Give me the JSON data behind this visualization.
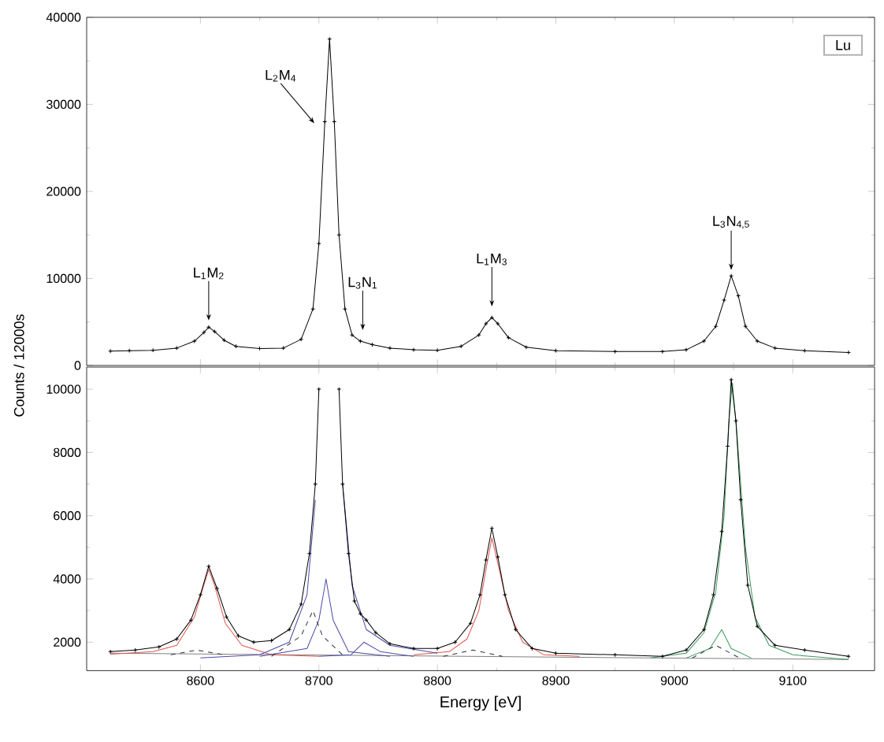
{
  "chart_data": [
    {
      "type": "line",
      "ylabel": "Counts / 12000s",
      "xlim": [
        8504,
        9169
      ],
      "ylim": [
        0,
        40000
      ],
      "xticks": [
        8600,
        8700,
        8800,
        8900,
        9000,
        9100
      ],
      "yticks": [
        0,
        10000,
        20000,
        30000,
        40000
      ],
      "tick_labels": "y",
      "series": [
        {
          "color": "#000000",
          "marker": "cross",
          "x": [
            8524,
            8540,
            8560,
            8580,
            8595,
            8603,
            8607,
            8612,
            8620,
            8630,
            8650,
            8670,
            8685,
            8695,
            8700,
            8705,
            8709,
            8713,
            8717,
            8722,
            8728,
            8735,
            8745,
            8760,
            8780,
            8800,
            8820,
            8835,
            8841,
            8846,
            8851,
            8860,
            8875,
            8900,
            8950,
            8990,
            9010,
            9025,
            9035,
            9042,
            9048,
            9054,
            9060,
            9070,
            9085,
            9110,
            9147
          ],
          "values": [
            1650,
            1700,
            1750,
            2000,
            2800,
            3800,
            4400,
            3900,
            2900,
            2200,
            1950,
            2000,
            3000,
            6500,
            14000,
            28000,
            37500,
            28000,
            15000,
            6500,
            3500,
            2800,
            2400,
            2000,
            1800,
            1750,
            2200,
            3500,
            4800,
            5500,
            4800,
            3200,
            2100,
            1700,
            1600,
            1600,
            1800,
            2800,
            4500,
            7500,
            10300,
            8000,
            4500,
            2800,
            2000,
            1700,
            1500
          ]
        }
      ],
      "annotations": [
        {
          "text": "L$_{1}$M$_{2}$",
          "x": 8607,
          "y": 5000
        },
        {
          "text": "L$_{2}$M$_{4}$",
          "x": 8697,
          "y": 27700
        },
        {
          "text": "L$_{3}$N$_{1}$",
          "x": 8737,
          "y": 3900
        },
        {
          "text": "L$_{1}$M$_{3}$",
          "x": 8846,
          "y": 6600
        },
        {
          "text": "L$_{3}$N$_{4,5}$",
          "x": 9048,
          "y": 10800
        },
        "Lu"
      ]
    },
    {
      "type": "line",
      "xlabel": "Energy [eV]",
      "xlim": [
        8504,
        9169
      ],
      "ylim": [
        1100,
        10700
      ],
      "xticks": [
        8600,
        8700,
        8800,
        8900,
        9000,
        9100
      ],
      "yticks": [
        2000,
        4000,
        6000,
        8000,
        10000
      ],
      "series": [
        {
          "color": "#808080",
          "x": [
            8524,
            9147
          ],
          "values": [
            1650,
            1450
          ]
        },
        {
          "color": "#e0544a",
          "x": [
            8524,
            8560,
            8580,
            8595,
            8602,
            8607,
            8612,
            8621,
            8635,
            8660,
            8700
          ],
          "values": [
            1620,
            1700,
            1900,
            2800,
            3700,
            4300,
            3800,
            2600,
            1900,
            1600,
            1550
          ]
        },
        {
          "color": "#e0544a",
          "x": [
            8780,
            8810,
            8825,
            8835,
            8841,
            8846,
            8851,
            8860,
            8872,
            8890,
            8920
          ],
          "values": [
            1600,
            1700,
            2100,
            3000,
            4300,
            5300,
            4500,
            3000,
            2000,
            1600,
            1550
          ]
        },
        {
          "color": "#4a4aa8",
          "x": [
            8600,
            8650,
            8675,
            8690,
            8697,
            8701,
            8709,
            8716,
            8720,
            8728,
            8740,
            8760,
            8800
          ],
          "values": [
            1500,
            1600,
            2000,
            3500,
            6500,
            null,
            null,
            null,
            7000,
            3800,
            2400,
            1900,
            1650
          ]
        },
        {
          "color": "#4a4aa8",
          "x": [
            8650,
            8690,
            8700,
            8706,
            8712,
            8725,
            8760
          ],
          "values": [
            1550,
            1800,
            2700,
            4000,
            2700,
            1700,
            1550
          ]
        },
        {
          "color": "#4a4aa8",
          "x": [
            8700,
            8727,
            8738,
            8752,
            8780
          ],
          "values": [
            1550,
            1600,
            2000,
            1700,
            1550
          ]
        },
        {
          "color": "#3a9a5a",
          "x": [
            8980,
            9010,
            9025,
            9035,
            9042,
            9046,
            9049,
            9053,
            9060,
            9068,
            9080,
            9100,
            9147
          ],
          "values": [
            1500,
            1650,
            2300,
            3600,
            6000,
            9000,
            10200,
            8500,
            5000,
            2800,
            1900,
            1600,
            1450
          ]
        },
        {
          "color": "#3a9a5a",
          "x": [
            9010,
            9030,
            9040,
            9048,
            9065
          ],
          "values": [
            1500,
            1800,
            2400,
            1800,
            1500
          ]
        },
        {
          "color": "#333333",
          "line_style": "dashed",
          "x": [
            8575,
            8597,
            8620,
            null,
            8660,
            8685,
            8695,
            8703,
            8720,
            null,
            8805,
            8830,
            8855,
            null,
            9015,
            9035,
            9055
          ],
          "values": [
            1600,
            1750,
            1600,
            null,
            1550,
            2200,
            3000,
            2200,
            1600,
            null,
            1550,
            1750,
            1550,
            null,
            1500,
            1900,
            1500
          ]
        },
        {
          "color": "#000000",
          "marker": "cross",
          "x": [
            8524,
            8545,
            8565,
            8580,
            8592,
            8600,
            8607,
            8614,
            8622,
            8632,
            8645,
            8660,
            8675,
            8685,
            8692,
            8697,
            8700,
            8709,
            8717,
            8720,
            8725,
            8730,
            8735,
            8740,
            8748,
            8760,
            8780,
            8800,
            8815,
            8828,
            8836,
            8841,
            8846,
            8851,
            8857,
            8866,
            8880,
            8900,
            8950,
            8990,
            9010,
            9025,
            9033,
            9040,
            9045,
            9048,
            9052,
            9056,
            9062,
            9070,
            9085,
            9110,
            9147
          ],
          "values": [
            1700,
            1750,
            1850,
            2100,
            2700,
            3500,
            4400,
            3700,
            2800,
            2200,
            2000,
            2050,
            2400,
            3200,
            4800,
            7000,
            10000,
            null,
            10000,
            7000,
            4800,
            3300,
            2900,
            2700,
            2300,
            1950,
            1800,
            1800,
            2000,
            2600,
            3500,
            4600,
            5600,
            4700,
            3500,
            2400,
            1800,
            1650,
            1600,
            1550,
            1750,
            2400,
            3500,
            5500,
            8200,
            10300,
            9000,
            6500,
            3800,
            2500,
            1900,
            1750,
            1550
          ]
        }
      ]
    }
  ]
}
